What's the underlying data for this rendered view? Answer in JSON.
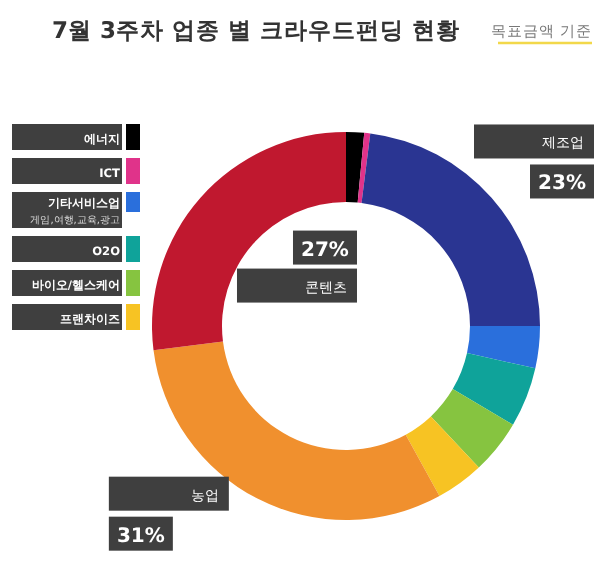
{
  "chart_data": {
    "type": "donut",
    "title": "7월 3주차 업종 별 크라우드펀딩 현황",
    "subtitle": "목표금액 기준",
    "categories": [
      "에너지",
      "ICT",
      "제조업",
      "기타서비스업",
      "O2O",
      "바이오/헬스케어",
      "프랜차이즈",
      "농업",
      "콘텐츠"
    ],
    "values": [
      1.5,
      0.5,
      23,
      3.5,
      5,
      4.5,
      4,
      31,
      27
    ],
    "colors": [
      "#000000",
      "#e0338a",
      "#2a3592",
      "#2a6fdc",
      "#0fa39a",
      "#86c440",
      "#f7c323",
      "#f0902e",
      "#c0182f"
    ],
    "value_labels": [
      null,
      null,
      "23%",
      null,
      null,
      null,
      null,
      "31%",
      "27%"
    ],
    "legend": "left",
    "annotations": [
      "게임,여행,교육,광고"
    ]
  }
}
